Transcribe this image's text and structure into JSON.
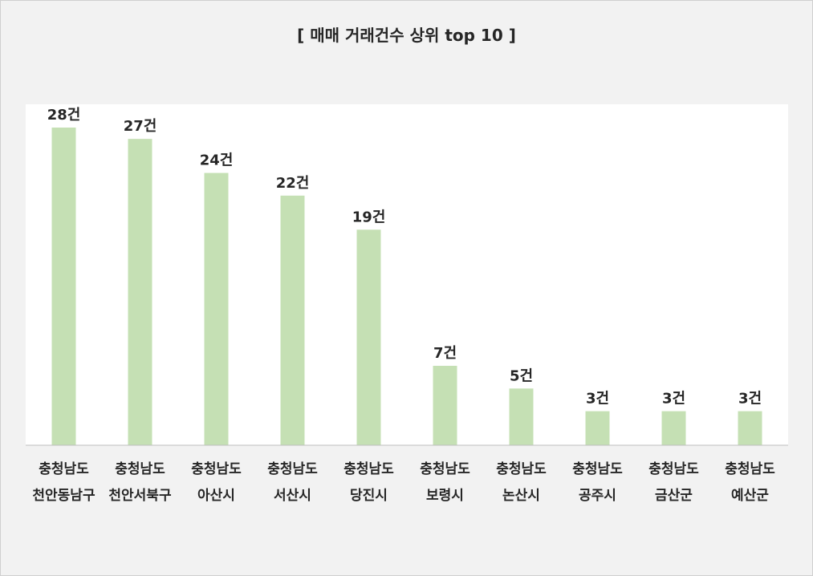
{
  "chart_data": {
    "type": "bar",
    "title": "[ 매매 거래건수 상위 top 10 ]",
    "categories": [
      [
        "충청남도",
        "천안동남구"
      ],
      [
        "충청남도",
        "천안서북구"
      ],
      [
        "충청남도",
        "아산시"
      ],
      [
        "충청남도",
        "서산시"
      ],
      [
        "충청남도",
        "당진시"
      ],
      [
        "충청남도",
        "보령시"
      ],
      [
        "충청남도",
        "논산시"
      ],
      [
        "충청남도",
        "공주시"
      ],
      [
        "충청남도",
        "금산군"
      ],
      [
        "충청남도",
        "예산군"
      ]
    ],
    "values": [
      28,
      27,
      24,
      22,
      19,
      7,
      5,
      3,
      3,
      3
    ],
    "value_suffix": "건",
    "data_labels": [
      "28건",
      "27건",
      "24건",
      "22건",
      "19건",
      "7건",
      "5건",
      "3건",
      "3건",
      "3건"
    ],
    "ylim": [
      0,
      30
    ],
    "grid": false,
    "legend": "none",
    "colors": {
      "bar": "#c5e0b4",
      "plot_background": "#ffffff",
      "chart_background": "#f2f2f2",
      "axis": "#bfbfbf",
      "text": "#262626"
    }
  }
}
